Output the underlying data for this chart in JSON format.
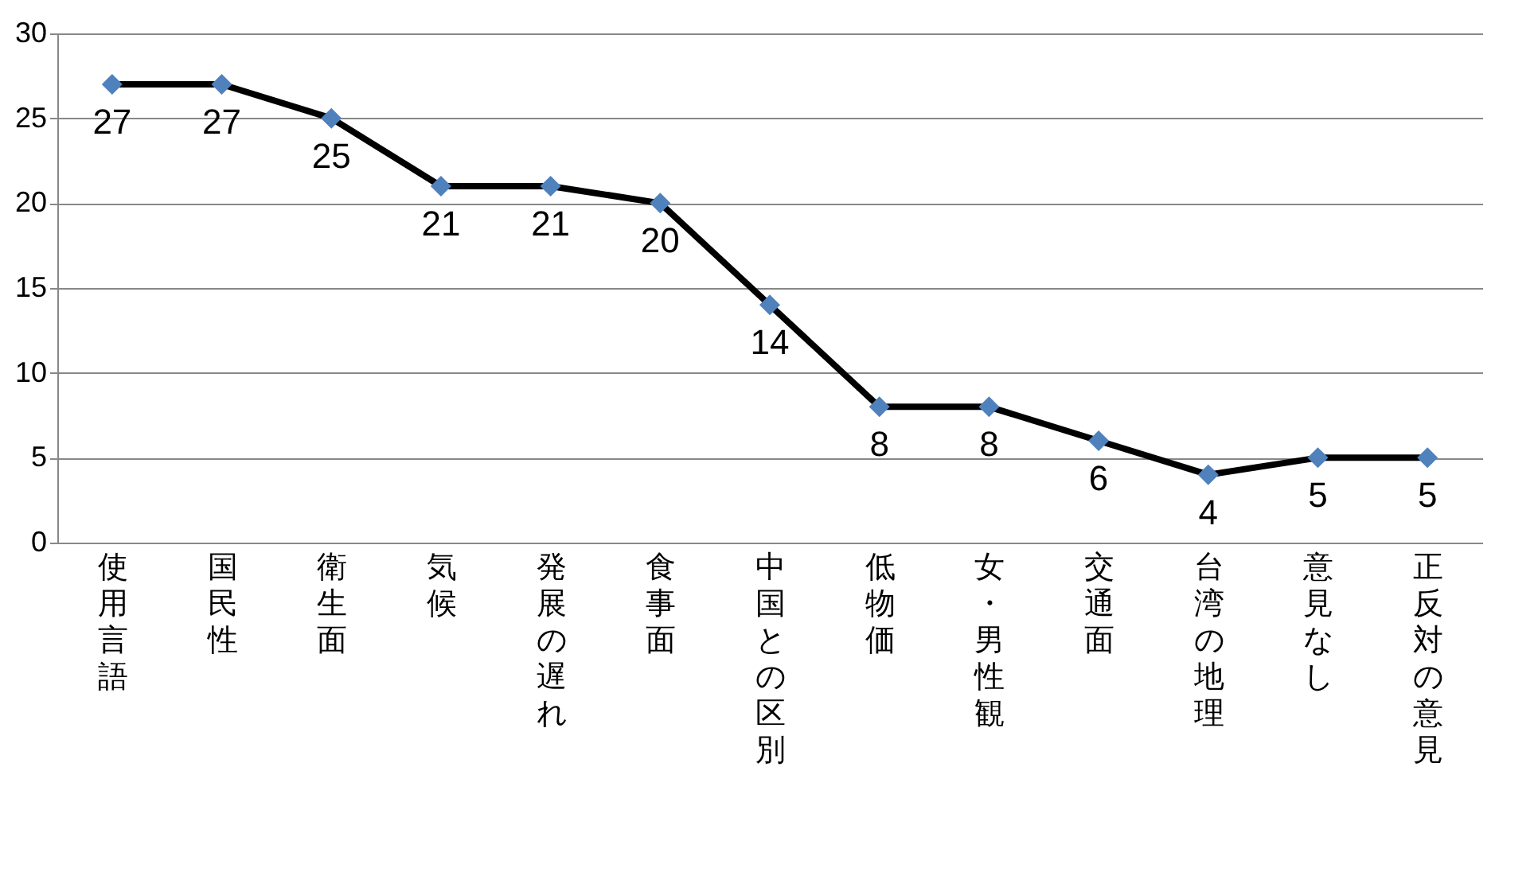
{
  "chart_data": {
    "type": "line",
    "categories": [
      "使用言語",
      "国民性",
      "衛生面",
      "気候",
      "発展の遅れ",
      "食事面",
      "中国との区別",
      "低物価",
      "女・男性観",
      "交通面",
      "台湾の地理",
      "意見なし",
      "正反対の意見"
    ],
    "series": [
      {
        "color": "#000000",
        "colors": [
          "#4f81bd",
          "#4f81bd",
          "#4f81bd",
          "#4f81bd",
          "#4f81bd",
          "#4f81bd",
          "#4f81bd",
          "#4f81bd",
          "#4f81bd",
          "#4f81bd",
          "#4f81bd",
          "#4f81bd",
          "#4f81bd"
        ],
        "values": [
          27,
          27,
          25,
          21,
          21,
          20,
          14,
          8,
          8,
          6,
          4,
          5,
          5
        ]
      }
    ],
    "ylim": [
      0,
      30
    ],
    "yticks": [
      0,
      5,
      10,
      15,
      20,
      25,
      30
    ],
    "grid": "y",
    "marker": "diamond",
    "line_style": "solid",
    "data_labels": true
  }
}
